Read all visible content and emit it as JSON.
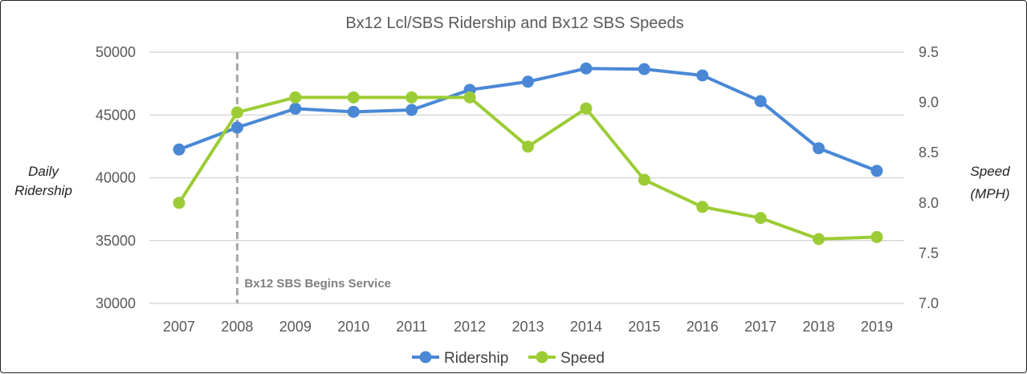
{
  "chart_data": {
    "type": "line",
    "title": "Bx12 Lcl/SBS Ridership and Bx12 SBS Speeds",
    "categories": [
      "2007",
      "2008",
      "2009",
      "2010",
      "2011",
      "2012",
      "2013",
      "2014",
      "2015",
      "2016",
      "2017",
      "2018",
      "2019"
    ],
    "series": [
      {
        "name": "Ridership",
        "axis": "left",
        "color": "#4a88d6",
        "values": [
          42250,
          44000,
          45500,
          45250,
          45400,
          47000,
          47650,
          48700,
          48650,
          48150,
          46100,
          42350,
          40550
        ]
      },
      {
        "name": "Speed",
        "axis": "right",
        "color": "#9ccc35",
        "values": [
          8.0,
          8.9,
          9.05,
          9.05,
          9.05,
          9.05,
          8.56,
          8.94,
          8.23,
          7.96,
          7.85,
          7.64,
          7.66
        ]
      }
    ],
    "ylabel_left": [
      "Daily",
      "Ridership"
    ],
    "ylabel_right": [
      "Speed",
      "(MPH)"
    ],
    "ylim_left": [
      30000,
      50000
    ],
    "yticks_left": [
      "30000",
      "35000",
      "40000",
      "45000",
      "50000"
    ],
    "ylim_right": [
      7.0,
      9.5
    ],
    "yticks_right": [
      "7.0",
      "7.5",
      "8.0",
      "8.5",
      "9.0",
      "9.5"
    ],
    "grid": true,
    "legend": "bottom",
    "annotation": {
      "x": "2008",
      "text": "Bx12 SBS Begins Service",
      "style": "dashed vertical line",
      "color": "#a6a6a6"
    }
  }
}
